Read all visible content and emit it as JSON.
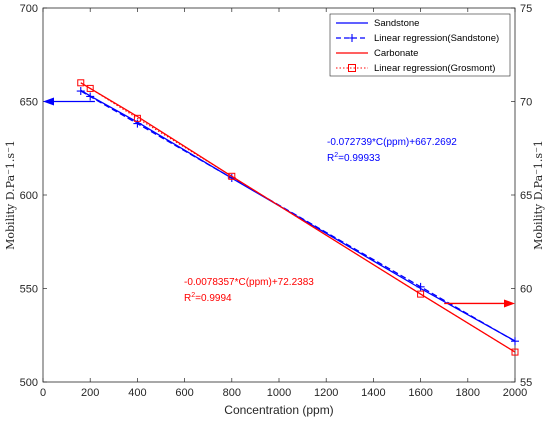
{
  "chart_data": {
    "type": "line",
    "xlabel": "Concentration (ppm)",
    "ylabel_left": "Mobility D.Pa⁻1.s⁻1",
    "ylabel_right": "Mobility D.Pa⁻1.s⁻1",
    "xlim": [
      0,
      2000
    ],
    "ylim_left": [
      500,
      700
    ],
    "ylim_right": [
      55,
      75
    ],
    "x_ticks": [
      "0",
      "200",
      "400",
      "600",
      "800",
      "1000",
      "1200",
      "1400",
      "1600",
      "1800",
      "2000"
    ],
    "y_left_ticks": [
      "500",
      "550",
      "600",
      "650",
      "700"
    ],
    "y_right_ticks": [
      "55",
      "60",
      "65",
      "70",
      "75"
    ],
    "legend_position": "top-right",
    "series": [
      {
        "name": "Sandstone",
        "axis": "left",
        "color": "#0000ff",
        "style": "solid",
        "points": [
          [
            160,
            656
          ],
          [
            200,
            653
          ],
          [
            400,
            639
          ],
          [
            800,
            609
          ],
          [
            1600,
            550
          ],
          [
            2000,
            522
          ]
        ]
      },
      {
        "name": "Linear regression(Sandstone)",
        "axis": "left",
        "color": "#0000ff",
        "style": "dashed",
        "marker": "plus",
        "points": [
          [
            160,
            655.6
          ],
          [
            200,
            652.7
          ],
          [
            400,
            638.2
          ],
          [
            800,
            609.1
          ],
          [
            1600,
            550.9
          ],
          [
            2000,
            521.8
          ]
        ]
      },
      {
        "name": "Carbonate",
        "axis": "right",
        "color": "#ff0000",
        "style": "solid",
        "points": [
          [
            160,
            71.0
          ],
          [
            200,
            70.7
          ],
          [
            400,
            69.2
          ],
          [
            800,
            66.0
          ],
          [
            1600,
            59.7
          ],
          [
            2000,
            56.6
          ]
        ]
      },
      {
        "name": "Linear regression(Grosmont)",
        "axis": "right",
        "color": "#ff0000",
        "style": "dotted",
        "marker": "square",
        "points": [
          [
            160,
            71.0
          ],
          [
            200,
            70.7
          ],
          [
            400,
            69.1
          ],
          [
            800,
            66.0
          ],
          [
            1600,
            59.7
          ],
          [
            2000,
            56.6
          ]
        ]
      }
    ],
    "annotations": {
      "sandstone_equation": "-0.072739*C(ppm)+667.2692",
      "sandstone_r2_prefix": "R",
      "sandstone_r2_value": "=0.99933",
      "carbonate_equation": "-0.0078357*C(ppm)+72.2383",
      "carbonate_r2_prefix": "R",
      "carbonate_r2_value": "=0.9994",
      "r2_exponent": "2",
      "blue_arrow": {
        "from_x": 220,
        "to_x": 0,
        "y": 650,
        "axis": "left"
      },
      "red_arrow": {
        "from_x": 1700,
        "to_x": 2000,
        "y": 59.2,
        "axis": "right"
      }
    }
  },
  "colors": {
    "sandstone": "#0000ff",
    "carbonate": "#ff0000",
    "axis": "#262626"
  }
}
